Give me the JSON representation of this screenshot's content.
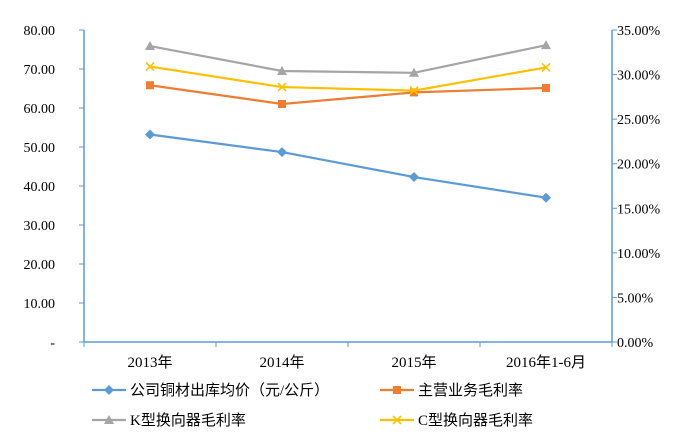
{
  "chart_data": {
    "type": "line",
    "categories": [
      "2013年",
      "2014年",
      "2015年",
      "2016年1-6月"
    ],
    "y_left": {
      "range": [
        0,
        80
      ],
      "ticks": [
        {
          "value": 0,
          "label": "-"
        },
        {
          "value": 10,
          "label": "10.00"
        },
        {
          "value": 20,
          "label": "20.00"
        },
        {
          "value": 30,
          "label": "30.00"
        },
        {
          "value": 40,
          "label": "40.00"
        },
        {
          "value": 50,
          "label": "50.00"
        },
        {
          "value": 60,
          "label": "60.00"
        },
        {
          "value": 70,
          "label": "70.00"
        },
        {
          "value": 80,
          "label": "80.00"
        }
      ]
    },
    "y_right": {
      "range": [
        0,
        35
      ],
      "ticks": [
        {
          "value": 0,
          "label": "0.00%"
        },
        {
          "value": 5,
          "label": "5.00%"
        },
        {
          "value": 10,
          "label": "10.00%"
        },
        {
          "value": 15,
          "label": "15.00%"
        },
        {
          "value": 20,
          "label": "20.00%"
        },
        {
          "value": 25,
          "label": "25.00%"
        },
        {
          "value": 30,
          "label": "30.00%"
        },
        {
          "value": 35,
          "label": "35.00%"
        }
      ]
    },
    "grid": false,
    "legend_position": "bottom",
    "series": [
      {
        "name": "公司铜材出库均价（元/公斤）",
        "axis": "left",
        "color": "#5B9BD5",
        "marker": "diamond",
        "values": [
          53.2,
          48.7,
          42.3,
          37.0
        ]
      },
      {
        "name": "主营业务毛利率",
        "axis": "right",
        "color": "#ED7D31",
        "marker": "square",
        "values": [
          28.8,
          26.7,
          28.0,
          28.5
        ]
      },
      {
        "name": "K型换向器毛利率",
        "axis": "right",
        "color": "#A5A5A5",
        "marker": "triangle",
        "values": [
          33.2,
          30.4,
          30.2,
          33.3
        ]
      },
      {
        "name": "C型换向器毛利率",
        "axis": "right",
        "color": "#FFC000",
        "marker": "x",
        "values": [
          30.9,
          28.6,
          28.2,
          30.8
        ]
      }
    ]
  }
}
